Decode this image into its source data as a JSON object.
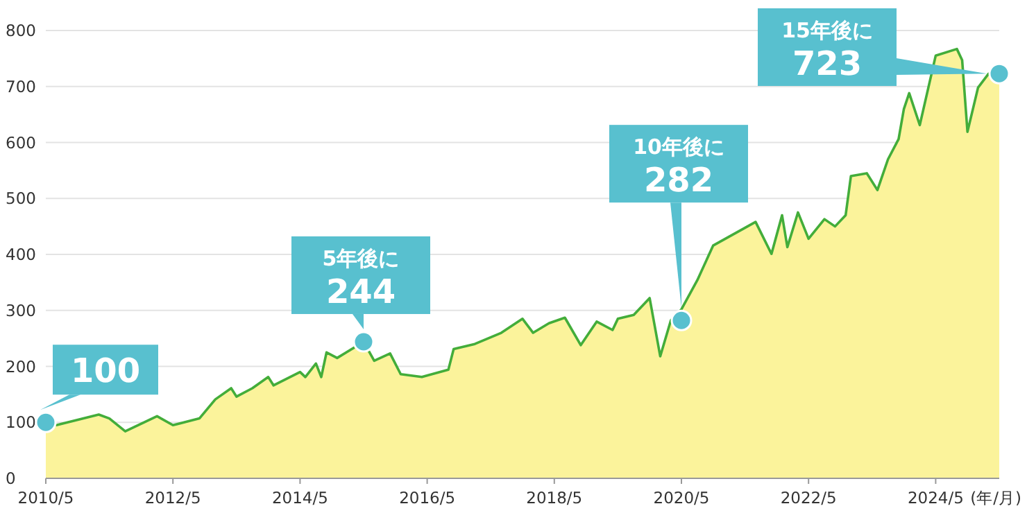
{
  "chart_data": {
    "type": "area",
    "xlabel": "(年/月)",
    "x": [
      "2010-05",
      "2010-07",
      "2011-03",
      "2011-05",
      "2011-08",
      "2012-02",
      "2012-05",
      "2012-10",
      "2013-01",
      "2013-04",
      "2013-05",
      "2013-08",
      "2013-11",
      "2013-12",
      "2014-05",
      "2014-06",
      "2014-08",
      "2014-09",
      "2014-10",
      "2014-12",
      "2015-05",
      "2015-07",
      "2015-10",
      "2015-12",
      "2016-04",
      "2016-09",
      "2016-10",
      "2017-02",
      "2017-07",
      "2017-11",
      "2018-01",
      "2018-04",
      "2018-07",
      "2018-10",
      "2019-01",
      "2019-04",
      "2019-05",
      "2019-08",
      "2019-11",
      "2020-01",
      "2020-03",
      "2020-05",
      "2020-08",
      "2020-11",
      "2021-07",
      "2021-10",
      "2021-12",
      "2022-01",
      "2022-03",
      "2022-05",
      "2022-08",
      "2022-10",
      "2022-12",
      "2023-01",
      "2023-04",
      "2023-06",
      "2023-08",
      "2023-10",
      "2023-11",
      "2023-12",
      "2024-02",
      "2024-05",
      "2024-09",
      "2024-10",
      "2024-11",
      "2025-01",
      "2025-03",
      "2025-04",
      "2025-05"
    ],
    "series": [
      {
        "color": "#43ad3a",
        "values": [
          100,
          95,
          114,
          107,
          84,
          111,
          95,
          107,
          141,
          161,
          146,
          161,
          181,
          166,
          190,
          181,
          205,
          181,
          225,
          215,
          244,
          210,
          223,
          186,
          181,
          194,
          231,
          240,
          260,
          285,
          260,
          277,
          287,
          238,
          280,
          265,
          285,
          292,
          322,
          218,
          282,
          302,
          354,
          416,
          458,
          401,
          470,
          413,
          475,
          428,
          463,
          450,
          470,
          540,
          545,
          515,
          570,
          606,
          660,
          688,
          631,
          755,
          767,
          747,
          619,
          698,
          723,
          723,
          723
        ]
      }
    ],
    "xlim": [
      "2010-05",
      "2025-05"
    ],
    "xticks": [
      {
        "value": "2010-05",
        "label": "2010/5"
      },
      {
        "value": "2012-05",
        "label": "2012/5"
      },
      {
        "value": "2014-05",
        "label": "2014/5"
      },
      {
        "value": "2016-05",
        "label": "2016/5"
      },
      {
        "value": "2018-05",
        "label": "2018/5"
      },
      {
        "value": "2020-05",
        "label": "2020/5"
      },
      {
        "value": "2022-05",
        "label": "2022/5"
      },
      {
        "value": "2024-05",
        "label": "2024/5"
      }
    ],
    "ylim": [
      0,
      800
    ],
    "yticks": [
      0,
      100,
      200,
      300,
      400,
      500,
      600,
      700,
      800
    ],
    "grid": "y",
    "annotations": [
      {
        "text": "100",
        "x": "2010-05",
        "y": 100
      },
      {
        "text": "5年後に\n244",
        "x": "2015-05",
        "y": 244
      },
      {
        "text": "10年後に\n282",
        "x": "2020-05",
        "y": 282
      },
      {
        "text": "15年後に\n723",
        "x": "2025-05",
        "y": 723
      }
    ]
  }
}
